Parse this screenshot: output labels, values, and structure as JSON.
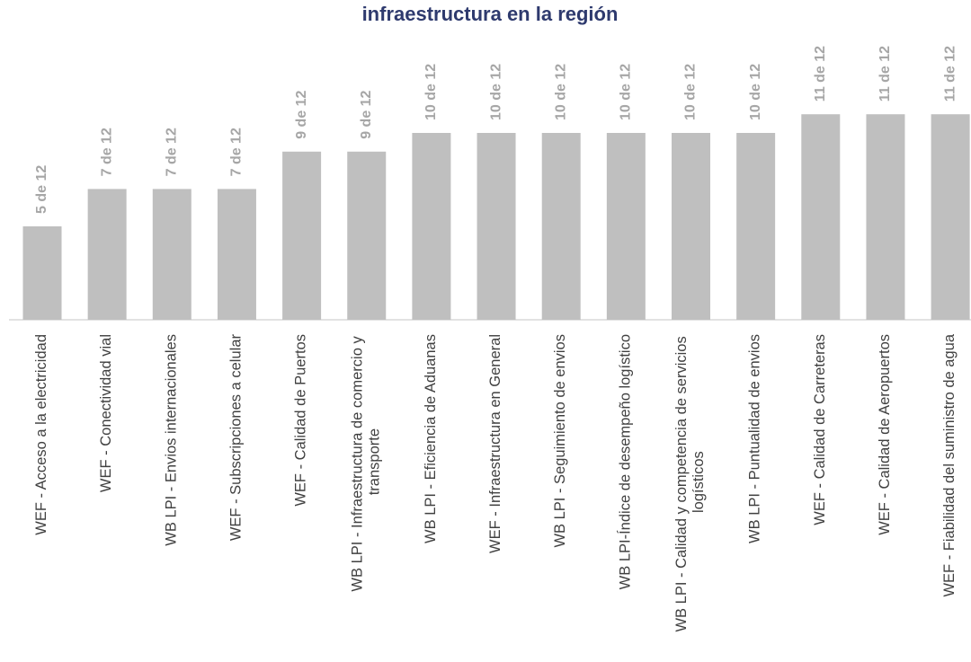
{
  "chart_data": {
    "type": "bar",
    "title": "infraestructura en la región",
    "categories": [
      "WEF - Acceso a la electricidad",
      "WEF - Conectividad vial",
      "WB LPI - Envios  internacionales",
      "WEF - Subscripciones a celular",
      "WEF - Calidad de Puertos",
      "WB LPI - Infraestructura de comercio y transporte",
      "WB LPI - Eficiencia de Aduanas",
      "WEF - Infraestructura en General",
      "WB LPI - Seguimiento de envios",
      "WB LPI-Índice de desempeño logístico",
      "WB LPI - Calidad y competencia de servicios logísticos",
      "WB LPI - Puntualidad de envios",
      "WEF - Calidad de Carreteras",
      "WEF - Calidad de Aeropuertos",
      "WEF - Fiabilidad del suministro de agua"
    ],
    "values": [
      5,
      7,
      7,
      7,
      9,
      9,
      10,
      10,
      10,
      10,
      10,
      10,
      11,
      11,
      11
    ],
    "value_labels": [
      "5 de 12",
      "7 de 12",
      "7 de 12",
      "7 de 12",
      "9 de 12",
      "9 de 12",
      "10 de 12",
      "10 de 12",
      "10 de 12",
      "10 de 12",
      "10 de 12",
      "10 de 12",
      "11 de 12",
      "11 de 12",
      "11 de 12"
    ],
    "color": "#bfbfbf"
  }
}
